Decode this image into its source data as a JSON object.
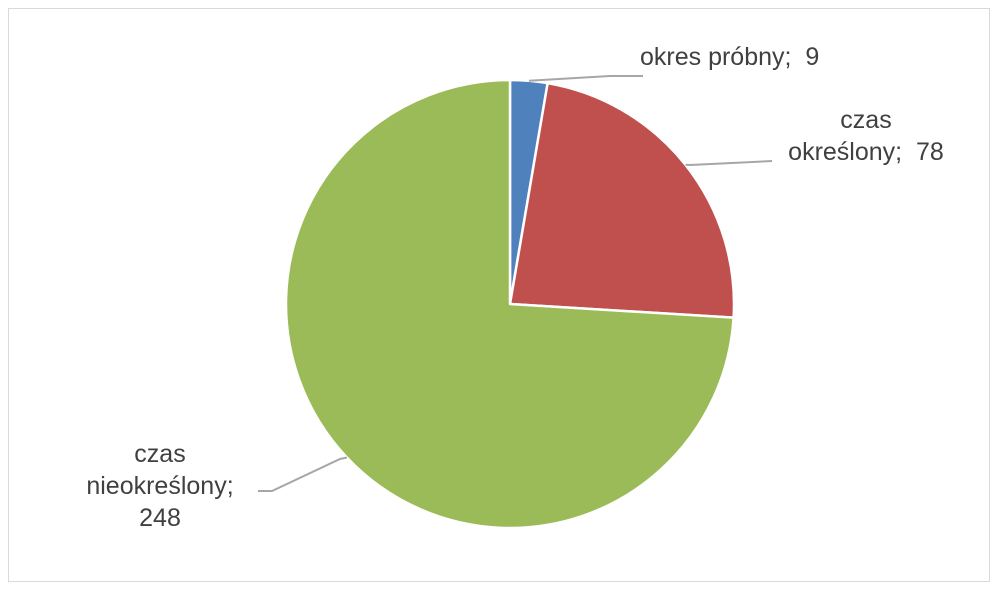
{
  "chart_data": {
    "type": "pie",
    "title": "",
    "slices": [
      {
        "category": "okres próbny",
        "value": 9,
        "color": "#4f81bd",
        "label_lines": [
          "okres próbny;  9"
        ]
      },
      {
        "category": "czas określony",
        "value": 78,
        "color": "#c0504d",
        "label_lines": [
          "czas",
          "określony;  78"
        ]
      },
      {
        "category": "czas nieokreślony",
        "value": 248,
        "color": "#9bbb59",
        "label_lines": [
          "czas",
          "nieokreślony;",
          "248"
        ]
      }
    ],
    "start_angle": "12 o'clock",
    "direction": "clockwise",
    "legend": "none"
  }
}
